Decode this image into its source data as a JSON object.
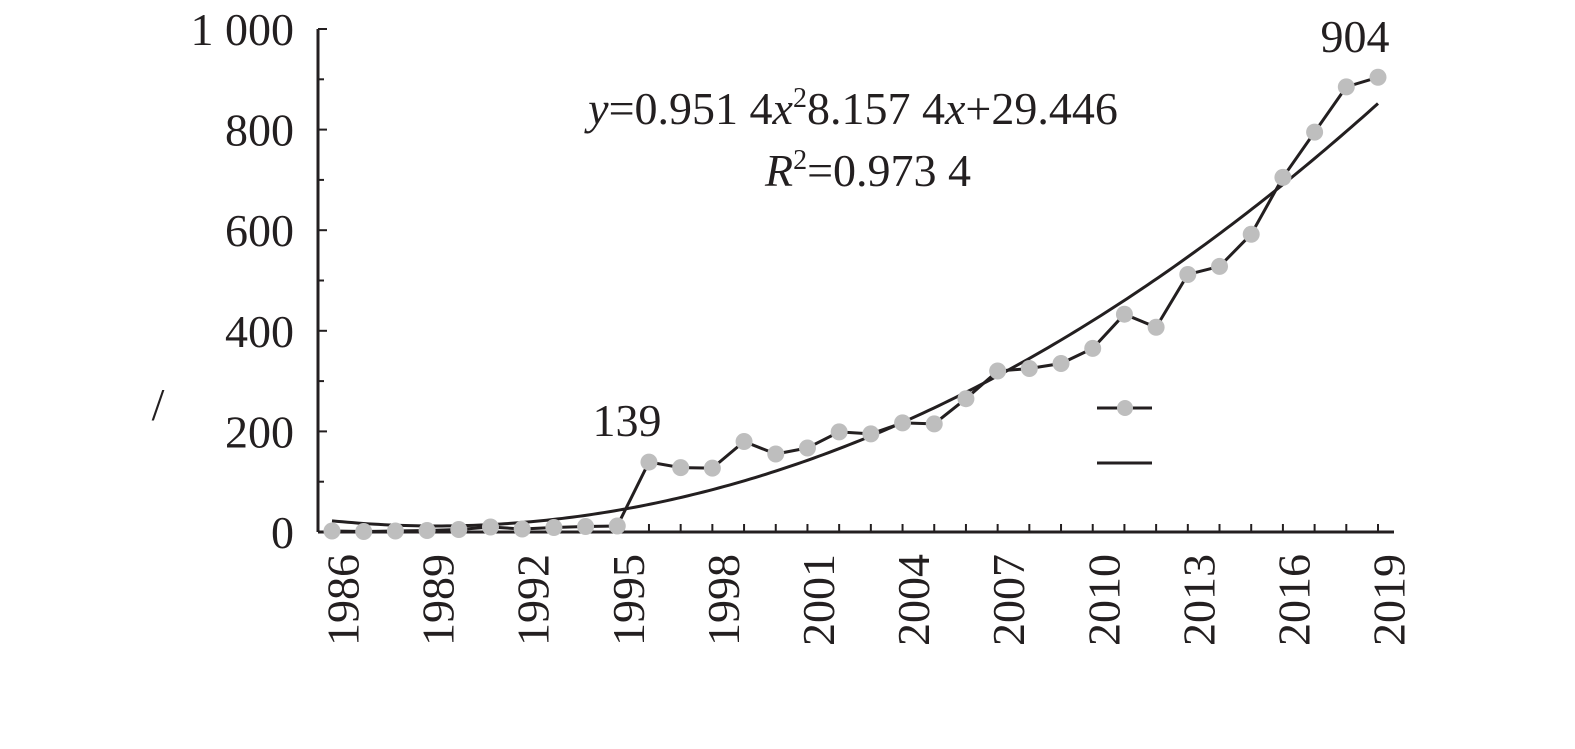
{
  "chart_data": {
    "type": "line",
    "title": "",
    "xlabel": "",
    "ylabel": "/",
    "x": [
      1986,
      1987,
      1988,
      1989,
      1990,
      1991,
      1992,
      1993,
      1994,
      1995,
      1996,
      1997,
      1998,
      1999,
      2000,
      2001,
      2002,
      2003,
      2004,
      2005,
      2006,
      2007,
      2008,
      2009,
      2010,
      2011,
      2012,
      2013,
      2014,
      2015,
      2016,
      2017,
      2018,
      2019
    ],
    "x_tick_labels": [
      "1986",
      "1989",
      "1992",
      "1995",
      "1998",
      "2001",
      "2004",
      "2007",
      "2010",
      "2013",
      "2016",
      "2019"
    ],
    "y_tick_labels": [
      "0",
      "200",
      "400",
      "600",
      "800",
      "1 000"
    ],
    "ylim": [
      0,
      1000
    ],
    "grid": false,
    "legend": "right",
    "series": [
      {
        "type": "line-with-markers",
        "color": "#bebebe",
        "values": [
          2,
          1,
          2,
          3,
          5,
          10,
          6,
          9,
          11,
          12,
          139,
          128,
          127,
          180,
          155,
          167,
          199,
          195,
          217,
          215,
          265,
          320,
          325,
          335,
          365,
          433,
          407,
          512,
          528,
          592,
          705,
          795,
          885,
          904
        ]
      },
      {
        "type": "trendline",
        "color": "#231f20",
        "fit": "polynomial-2",
        "coefficients": {
          "a": 0.9514,
          "b": -8.1574,
          "c": 29.446
        }
      }
    ],
    "annotations": {
      "peak_1995": "139",
      "peak_2019": "904",
      "equation": {
        "y": "y",
        "eq1": "=0.951 4",
        "x1": "x",
        "sup2": "2",
        "eq2": "8.157 4",
        "x2": "x",
        "eq3": "+29.446"
      },
      "r_squared": {
        "r": "R",
        "sup": "2",
        "value": "=0.973 4"
      }
    }
  }
}
